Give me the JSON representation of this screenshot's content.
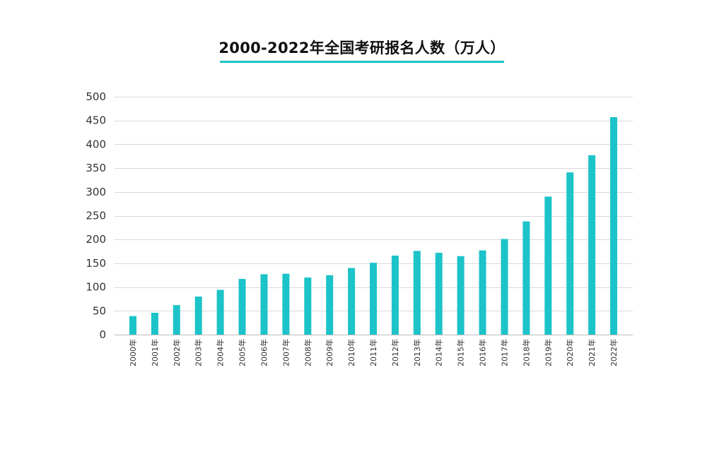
{
  "accent_color": "#1CC3C8",
  "chart_data": {
    "type": "bar",
    "title": "2000-2022年全国考研报名人数（万人）",
    "xlabel": "",
    "ylabel": "",
    "ylim": [
      0,
      500
    ],
    "yticks": [
      0,
      50,
      100,
      150,
      200,
      250,
      300,
      350,
      400,
      450,
      500
    ],
    "grid": true,
    "legend": "none",
    "bar_color": "#1CC3C8",
    "categories": [
      "2000年",
      "2001年",
      "2002年",
      "2003年",
      "2004年",
      "2005年",
      "2006年",
      "2007年",
      "2008年",
      "2009年",
      "2010年",
      "2011年",
      "2012年",
      "2013年",
      "2014年",
      "2015年",
      "2016年",
      "2017年",
      "2018年",
      "2019年",
      "2020年",
      "2021年",
      "2022年"
    ],
    "values": [
      39,
      46,
      62,
      80,
      94,
      117,
      127,
      128,
      120,
      125,
      140,
      151,
      166,
      176,
      172,
      165,
      177,
      201,
      238,
      290,
      341,
      377,
      457
    ]
  }
}
